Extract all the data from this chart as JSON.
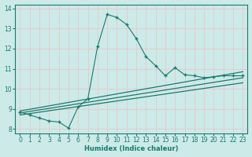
{
  "xlabel": "Humidex (Indice chaleur)",
  "ylabel": "",
  "bg_color": "#cceae8",
  "line_color": "#1a7a6e",
  "grid_color": "#e8c8c8",
  "xlim": [
    -0.5,
    23.5
  ],
  "ylim": [
    7.8,
    14.2
  ],
  "xtick_labels": [
    "0",
    "1",
    "2",
    "3",
    "4",
    "5",
    "6",
    "7",
    "8",
    "9",
    "10",
    "11",
    "12",
    "13",
    "14",
    "15",
    "16",
    "17",
    "18",
    "19",
    "20",
    "21",
    "22",
    "23"
  ],
  "xticks": [
    0,
    1,
    2,
    3,
    4,
    5,
    6,
    7,
    8,
    9,
    10,
    11,
    12,
    13,
    14,
    15,
    16,
    17,
    18,
    19,
    20,
    21,
    22,
    23
  ],
  "yticks": [
    8,
    9,
    10,
    11,
    12,
    13,
    14
  ],
  "main_curve_x": [
    0,
    1,
    2,
    3,
    4,
    5,
    6,
    7,
    8,
    9,
    10,
    11,
    12,
    13,
    14,
    15,
    16,
    17,
    18,
    19,
    20,
    21,
    22,
    23
  ],
  "main_curve_y": [
    8.85,
    8.7,
    8.55,
    8.4,
    8.35,
    8.05,
    9.1,
    9.5,
    12.1,
    13.7,
    13.55,
    13.2,
    12.5,
    11.6,
    11.15,
    10.65,
    11.05,
    10.7,
    10.65,
    10.55,
    10.6,
    10.65,
    10.65,
    10.65
  ],
  "line1_x": [
    0,
    23
  ],
  "line1_y": [
    8.7,
    10.3
  ],
  "line2_x": [
    0,
    23
  ],
  "line2_y": [
    8.8,
    10.55
  ],
  "line3_x": [
    0,
    23
  ],
  "line3_y": [
    8.9,
    10.85
  ]
}
